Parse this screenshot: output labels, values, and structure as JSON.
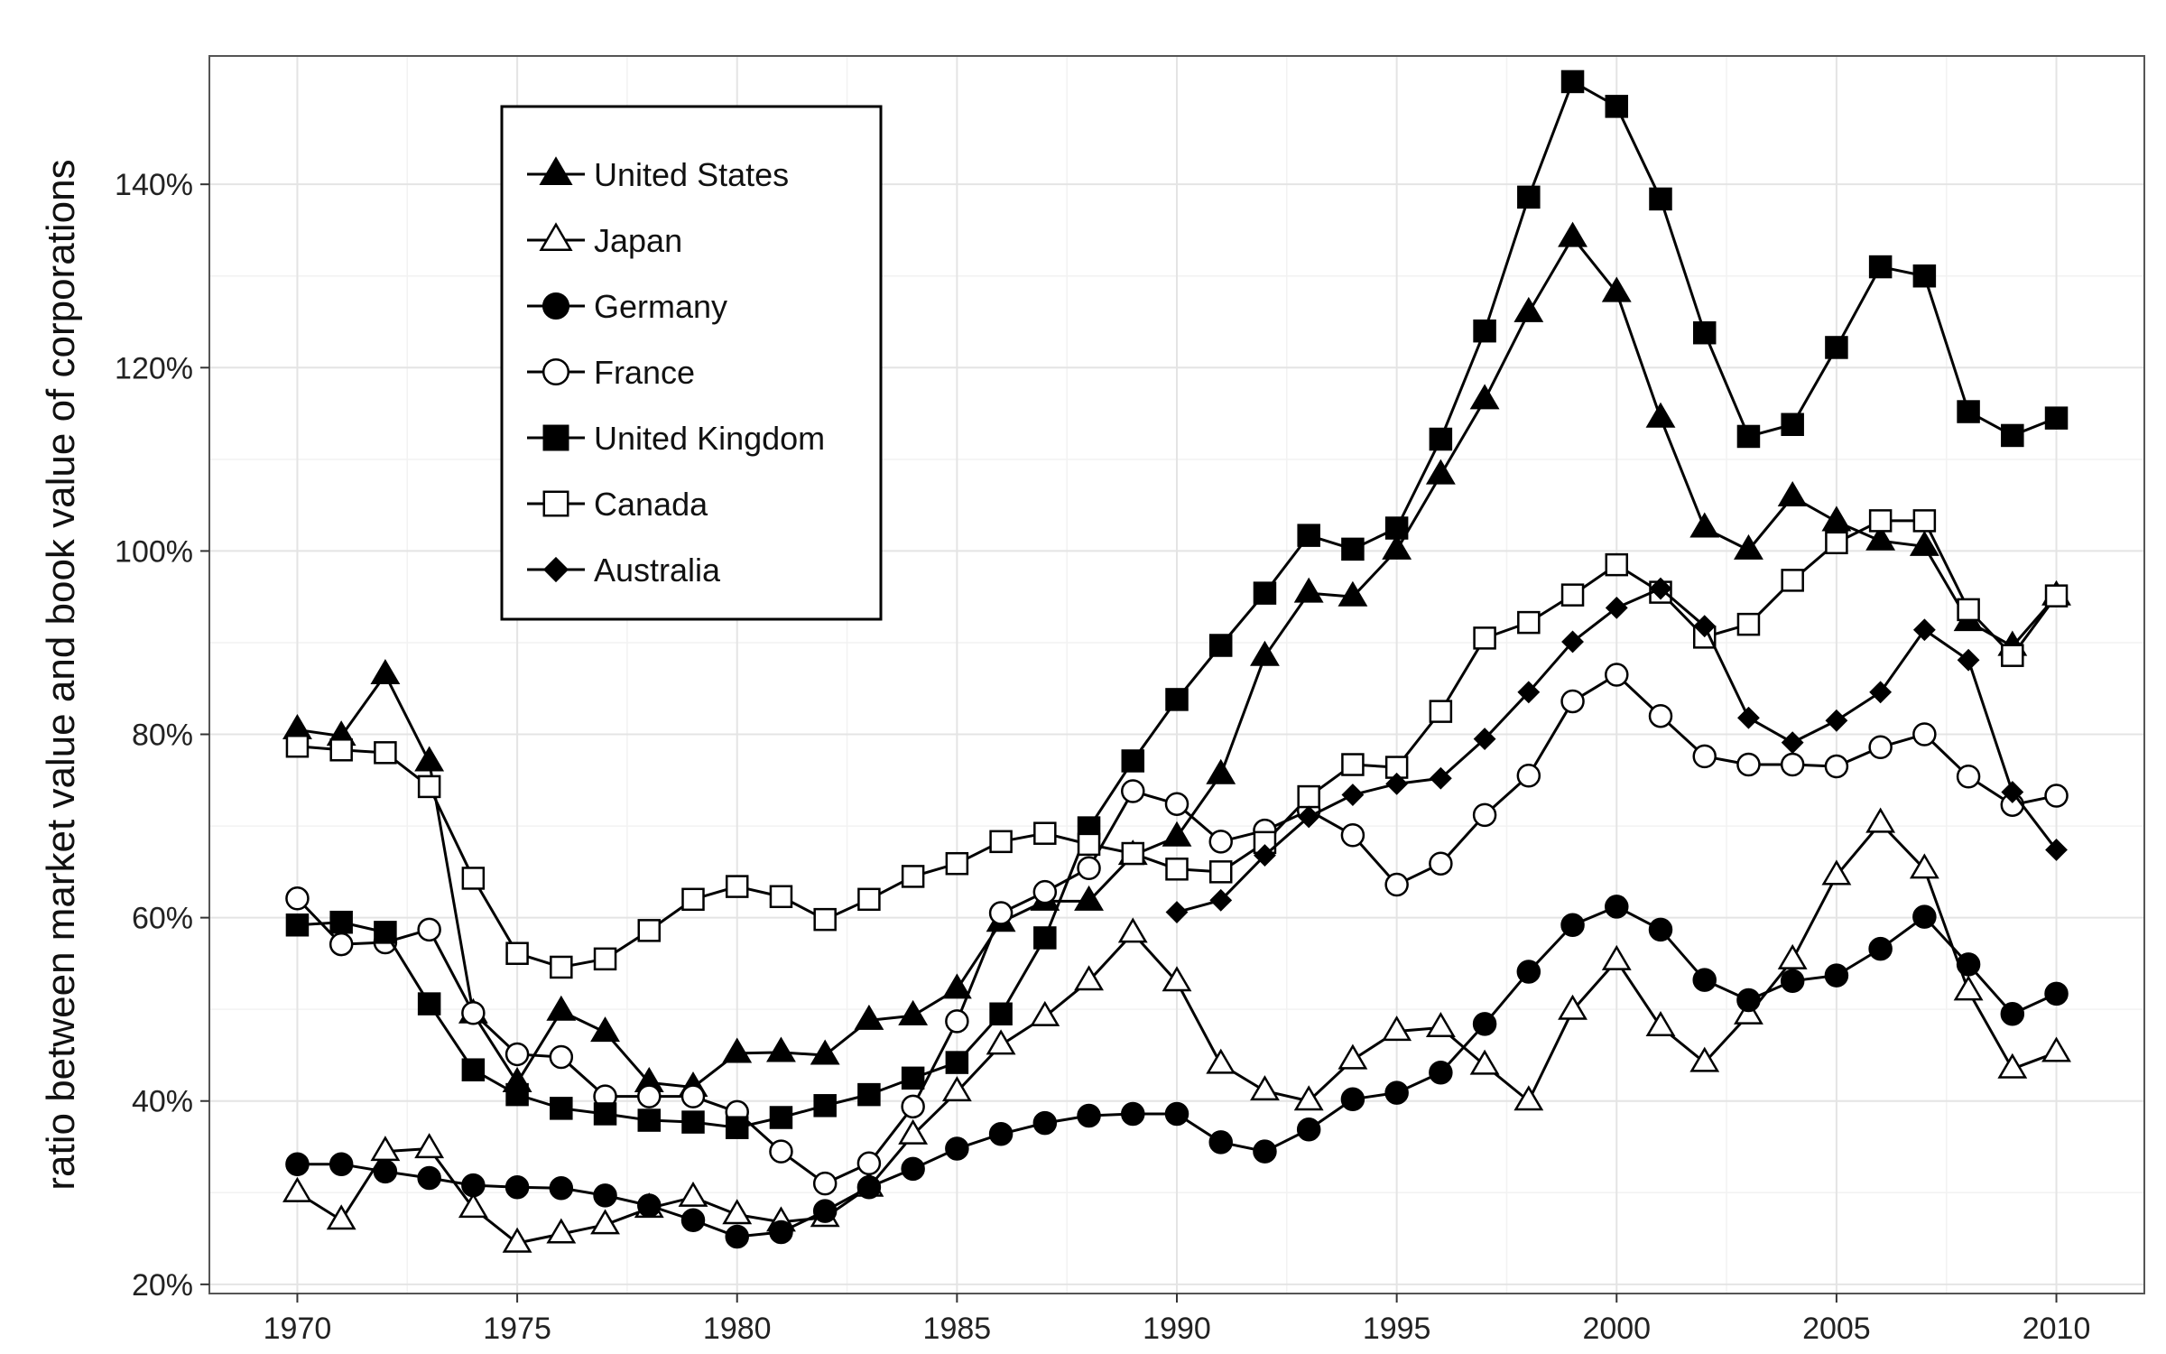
{
  "chart_data": {
    "type": "line",
    "title": "",
    "xlabel": "",
    "ylabel": "ratio between market value and book value of corporations",
    "xlim": [
      1968,
      2012
    ],
    "ylim": [
      19,
      154
    ],
    "x_ticks": [
      1970,
      1975,
      1980,
      1985,
      1990,
      1995,
      2000,
      2005,
      2010
    ],
    "x_tick_labels": [
      "1970",
      "1975",
      "1980",
      "1985",
      "1990",
      "1995",
      "2000",
      "2005",
      "2010"
    ],
    "y_ticks": [
      20,
      40,
      60,
      80,
      100,
      120,
      140
    ],
    "y_tick_labels": [
      "20%",
      "40%",
      "60%",
      "80%",
      "100%",
      "120%",
      "140%"
    ],
    "grid": true,
    "legend_position": "top-left",
    "x": [
      1970,
      1971,
      1972,
      1973,
      1974,
      1975,
      1976,
      1977,
      1978,
      1979,
      1980,
      1981,
      1982,
      1983,
      1984,
      1985,
      1986,
      1987,
      1988,
      1989,
      1990,
      1991,
      1992,
      1993,
      1994,
      1995,
      1996,
      1997,
      1998,
      1999,
      2000,
      2001,
      2002,
      2003,
      2004,
      2005,
      2006,
      2007,
      2008,
      2009,
      2010
    ],
    "series": [
      {
        "name": "United States",
        "marker": "triangle-filled",
        "values": [
          80.5,
          79.8,
          86.5,
          77,
          49.5,
          42,
          49.8,
          47.5,
          42,
          41.5,
          45.2,
          45.3,
          45,
          48.8,
          49.3,
          52.2,
          59.5,
          61.8,
          61.8,
          66.8,
          68.8,
          75.6,
          88.5,
          95.4,
          95,
          100.1,
          108.3,
          116.5,
          126,
          134.2,
          128.2,
          114.5,
          102.5,
          100.1,
          105.9,
          103.2,
          101.1,
          100.5,
          92.3,
          89.6,
          95.1
        ]
      },
      {
        "name": "Japan",
        "marker": "triangle-open",
        "values": [
          30,
          27,
          34.5,
          34.8,
          28.3,
          24.5,
          25.5,
          26.5,
          28.3,
          29.5,
          27.6,
          26.8,
          27.3,
          30.6,
          36.3,
          41,
          46.1,
          49.2,
          53.1,
          58.3,
          53,
          44,
          41.1,
          40,
          44.5,
          47.6,
          48,
          43.9,
          40,
          49.9,
          55.3,
          48.1,
          44.2,
          49.4,
          55.4,
          64.6,
          70.3,
          65.3,
          52,
          43.5,
          45.3
        ]
      },
      {
        "name": "Germany",
        "marker": "circle-filled",
        "values": [
          33.1,
          33.1,
          32.3,
          31.6,
          30.8,
          30.6,
          30.5,
          29.7,
          28.6,
          27,
          25.2,
          25.7,
          28,
          30.6,
          32.6,
          34.8,
          36.4,
          37.6,
          38.4,
          38.6,
          38.6,
          35.5,
          34.5,
          36.9,
          40.2,
          40.9,
          43.1,
          48.4,
          54.1,
          59.2,
          61.2,
          58.7,
          53.2,
          51,
          53.1,
          53.7,
          56.6,
          60.1,
          54.9,
          49.5,
          51.7
        ]
      },
      {
        "name": "France",
        "marker": "circle-open",
        "values": [
          62.1,
          57.1,
          57.3,
          58.7,
          49.6,
          45.1,
          44.8,
          40.5,
          40.5,
          40.5,
          38.8,
          34.5,
          31,
          33.2,
          39.4,
          48.7,
          60.5,
          62.8,
          65.4,
          73.8,
          72.4,
          68.3,
          69.5,
          71.7,
          69,
          63.6,
          65.9,
          71.2,
          75.5,
          83.6,
          86.5,
          82,
          77.6,
          76.7,
          76.7,
          76.5,
          78.6,
          80,
          75.4,
          72.3,
          73.3
        ]
      },
      {
        "name": "United Kingdom",
        "marker": "square-filled",
        "values": [
          59.2,
          59.5,
          58.4,
          50.6,
          43.4,
          40.7,
          39.2,
          38.6,
          37.9,
          37.7,
          37.1,
          38.2,
          39.5,
          40.7,
          42.5,
          44.2,
          49.5,
          57.8,
          69.8,
          77.1,
          83.8,
          89.7,
          95.4,
          101.7,
          100.2,
          102.5,
          112.2,
          124,
          138.6,
          151.2,
          148.5,
          138.4,
          123.8,
          112.5,
          113.8,
          122.2,
          131,
          130,
          115.2,
          112.6,
          114.5
        ]
      },
      {
        "name": "Canada",
        "marker": "square-open",
        "values": [
          78.7,
          78.3,
          78,
          74.3,
          64.3,
          56.1,
          54.6,
          55.5,
          58.6,
          62,
          63.4,
          62.3,
          59.8,
          62,
          64.5,
          65.9,
          68.3,
          69.2,
          68,
          67,
          65.3,
          65,
          68.2,
          73.2,
          76.7,
          76.4,
          82.5,
          90.5,
          92.2,
          95.2,
          98.5,
          95.5,
          90.6,
          92,
          96.8,
          100.9,
          103.3,
          103.3,
          93.6,
          88.6,
          95.1
        ]
      },
      {
        "name": "Australia",
        "marker": "diamond-filled",
        "values": [
          null,
          null,
          null,
          null,
          null,
          null,
          null,
          null,
          null,
          null,
          null,
          null,
          null,
          null,
          null,
          null,
          null,
          null,
          null,
          null,
          60.6,
          61.9,
          66.8,
          71,
          73.4,
          74.6,
          75.2,
          79.5,
          84.6,
          90.1,
          93.8,
          95.9,
          91.8,
          81.8,
          79.1,
          81.5,
          84.6,
          91.4,
          88.1,
          73.7,
          67.4
        ]
      }
    ]
  }
}
